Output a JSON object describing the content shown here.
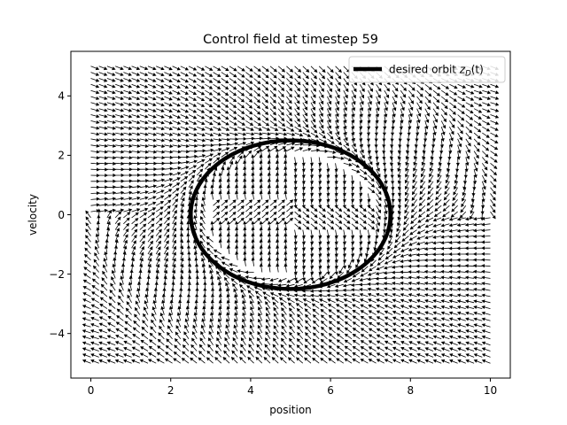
{
  "chart_data": {
    "type": "quiver",
    "title": "Control field at timestep 59",
    "xlabel": "position",
    "ylabel": "velocity",
    "xlim": [
      -0.5,
      10.5
    ],
    "ylim": [
      -5.5,
      5.5
    ],
    "xticks": [
      0,
      2,
      4,
      6,
      8,
      10
    ],
    "xtick_labels": [
      "0",
      "2",
      "4",
      "6",
      "8",
      "10"
    ],
    "yticks": [
      -4,
      -2,
      0,
      2,
      4
    ],
    "ytick_labels": [
      "−4",
      "−2",
      "0",
      "2",
      "4"
    ],
    "grid": false,
    "legend": {
      "placement": "upper-right",
      "entries": [
        {
          "label": "desired orbit zᴅ(t)",
          "label_prefix": "desired orbit ",
          "label_math": "z",
          "label_sub": "D",
          "label_suffix": "(t)",
          "color": "#000000"
        }
      ]
    },
    "orbit": {
      "center": [
        5.0,
        0.0
      ],
      "radius_x": 2.5,
      "radius_y": 2.5,
      "color": "#000000"
    },
    "field": {
      "x_range": [
        0,
        10
      ],
      "y_range": [
        -5,
        5
      ],
      "nx": 50,
      "ny": 50,
      "color": "#000000"
    }
  }
}
